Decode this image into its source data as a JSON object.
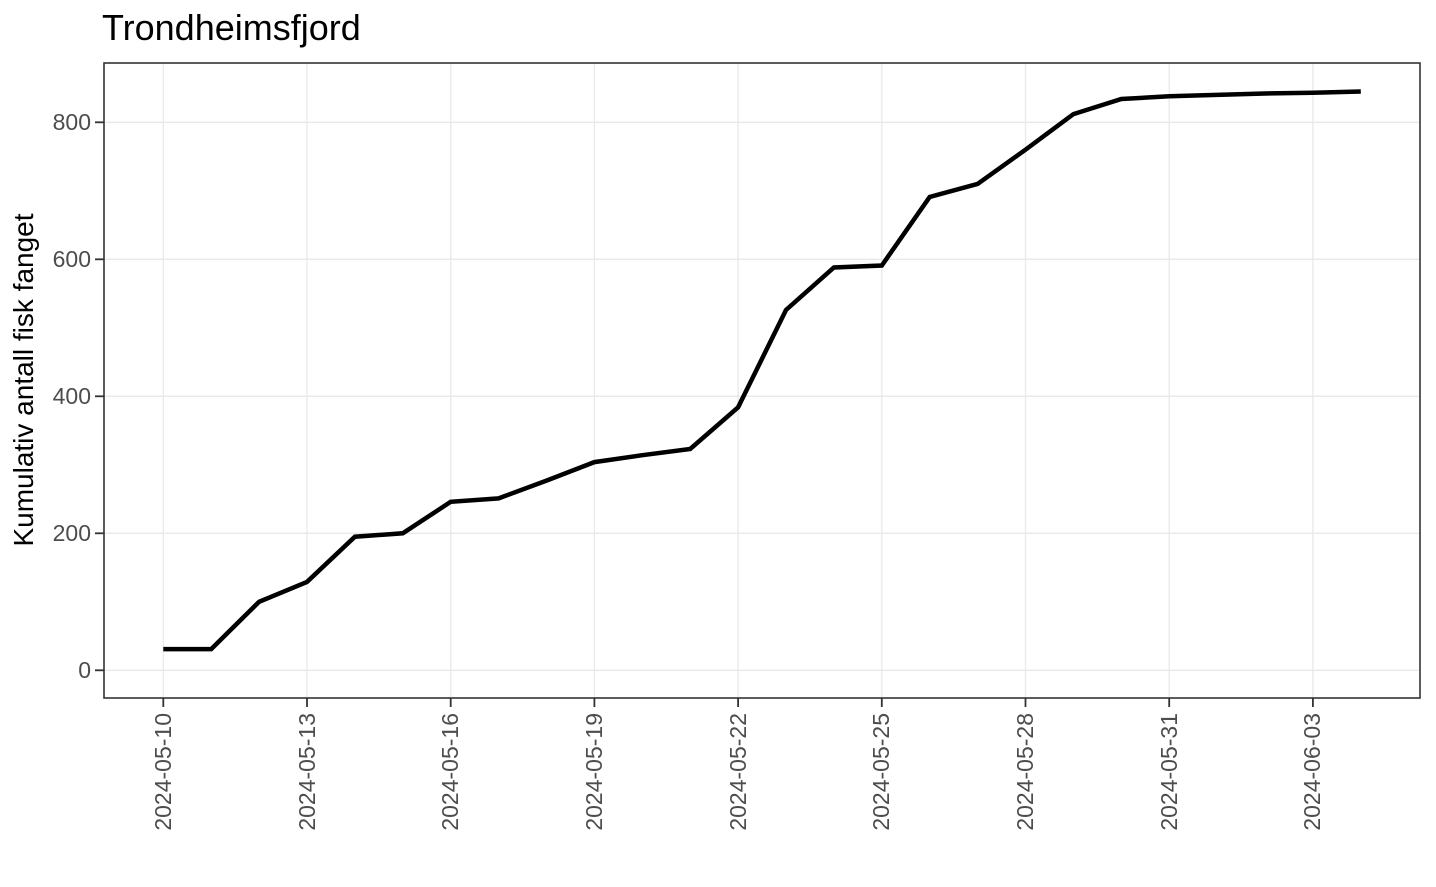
{
  "chart_data": {
    "type": "line",
    "title": "Trondheimsfjord",
    "ylabel": "Kumulativ antall fisk fanget",
    "xlabel": "",
    "x": [
      "2024-05-10",
      "2024-05-11",
      "2024-05-12",
      "2024-05-13",
      "2024-05-14",
      "2024-05-15",
      "2024-05-16",
      "2024-05-17",
      "2024-05-18",
      "2024-05-19",
      "2024-05-20",
      "2024-05-21",
      "2024-05-22",
      "2024-05-23",
      "2024-05-24",
      "2024-05-25",
      "2024-05-26",
      "2024-05-27",
      "2024-05-28",
      "2024-05-29",
      "2024-05-30",
      "2024-05-31",
      "2024-06-01",
      "2024-06-02",
      "2024-06-03",
      "2024-06-04"
    ],
    "values": [
      31,
      31,
      100,
      129,
      195,
      200,
      246,
      251,
      277,
      304,
      314,
      323,
      384,
      526,
      588,
      591,
      691,
      710,
      760,
      812,
      834,
      838,
      840,
      842,
      843,
      845
    ],
    "x_tick_labels": [
      "2024-05-10",
      "2024-05-13",
      "2024-05-16",
      "2024-05-19",
      "2024-05-22",
      "2024-05-25",
      "2024-05-28",
      "2024-05-31",
      "2024-06-03"
    ],
    "y_ticks": [
      0,
      200,
      400,
      600,
      800
    ],
    "ylim": [
      -40,
      886
    ],
    "grid": "major-only",
    "legend": "none",
    "line_color": "#000000",
    "line_width": 4.5,
    "grid_color": "#e9e9e9",
    "panel_border_color": "#333333",
    "tick_mark_color": "#333333",
    "tick_label_color": "#4d4d4d",
    "background_color": "#ffffff"
  }
}
